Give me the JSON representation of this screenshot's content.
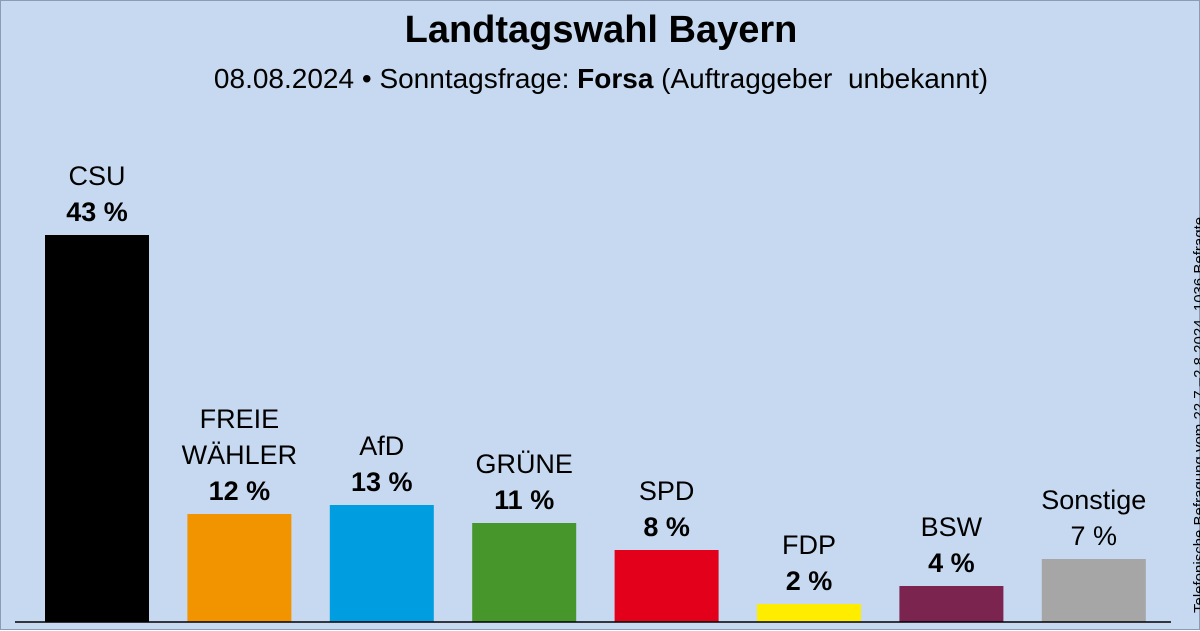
{
  "title": "Landtagswahl Bayern",
  "subtitle": {
    "date": "08.08.2024",
    "separator": "•",
    "kind": "Sonntagsfrage:",
    "pollster": "Forsa",
    "client": "(Auftraggeber  unbekannt)"
  },
  "source_note": "Telefonische Befragung vom 22.7.–2.8.2024, 1036 Befragte",
  "chart_data": {
    "type": "bar",
    "title": "Landtagswahl Bayern",
    "categories": [
      "CSU",
      "FREIE WÄHLER",
      "AfD",
      "GRÜNE",
      "SPD",
      "FDP",
      "BSW",
      "Sonstige"
    ],
    "label_lines": [
      [
        "CSU"
      ],
      [
        "FREIE",
        "WÄHLER"
      ],
      [
        "AfD"
      ],
      [
        "GRÜNE"
      ],
      [
        "SPD"
      ],
      [
        "FDP"
      ],
      [
        "BSW"
      ],
      [
        "Sonstige"
      ]
    ],
    "values": [
      43,
      12,
      13,
      11,
      8,
      2,
      4,
      7
    ],
    "value_labels": [
      "43 %",
      "12 %",
      "13 %",
      "11 %",
      "8 %",
      "2 %",
      "4 %",
      "7 %"
    ],
    "value_bold": [
      true,
      true,
      true,
      true,
      true,
      true,
      true,
      false
    ],
    "colors": [
      "#000000",
      "#f29400",
      "#009ee0",
      "#46962b",
      "#e3001b",
      "#ffed00",
      "#7b2450",
      "#a6a6a6"
    ],
    "unit": "%",
    "xlabel": "",
    "ylabel": "",
    "ylim": [
      0,
      43
    ],
    "grid": false,
    "legend": "none"
  }
}
